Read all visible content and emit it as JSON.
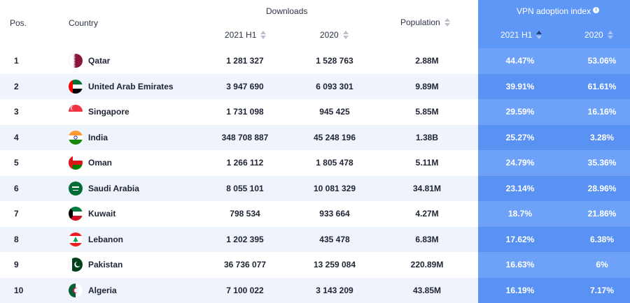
{
  "columns": {
    "pos": "Pos.",
    "country": "Country",
    "downloads_group": "Downloads",
    "downloads_2021h1": "2021 H1",
    "downloads_2020": "2020",
    "population": "Population",
    "vpn_group": "VPN adoption index",
    "vpn_2021h1": "2021 H1",
    "vpn_2020": "2020"
  },
  "colors": {
    "vpn_panel": "#5f97f7",
    "row_alt": "#eef3fc"
  },
  "rows": [
    {
      "pos": "1",
      "flag": "qatar-flag",
      "country": "Qatar",
      "dl_2021h1": "1 281 327",
      "dl_2020": "1 528 763",
      "population": "2.88M",
      "vpn_2021h1": "44.47%",
      "vpn_2020": "53.06%"
    },
    {
      "pos": "2",
      "flag": "uae-flag",
      "country": "United Arab Emirates",
      "dl_2021h1": "3 947 690",
      "dl_2020": "6 093 301",
      "population": "9.89M",
      "vpn_2021h1": "39.91%",
      "vpn_2020": "61.61%"
    },
    {
      "pos": "3",
      "flag": "singapore-flag",
      "country": "Singapore",
      "dl_2021h1": "1 731 098",
      "dl_2020": "945 425",
      "population": "5.85M",
      "vpn_2021h1": "29.59%",
      "vpn_2020": "16.16%"
    },
    {
      "pos": "4",
      "flag": "india-flag",
      "country": "India",
      "dl_2021h1": "348 708 887",
      "dl_2020": "45 248 196",
      "population": "1.38B",
      "vpn_2021h1": "25.27%",
      "vpn_2020": "3.28%"
    },
    {
      "pos": "5",
      "flag": "oman-flag",
      "country": "Oman",
      "dl_2021h1": "1 266 112",
      "dl_2020": "1 805 478",
      "population": "5.11M",
      "vpn_2021h1": "24.79%",
      "vpn_2020": "35.36%"
    },
    {
      "pos": "6",
      "flag": "saudi-arabia-flag",
      "country": "Saudi Arabia",
      "dl_2021h1": "8 055 101",
      "dl_2020": "10 081 329",
      "population": "34.81M",
      "vpn_2021h1": "23.14%",
      "vpn_2020": "28.96%"
    },
    {
      "pos": "7",
      "flag": "kuwait-flag",
      "country": "Kuwait",
      "dl_2021h1": "798 534",
      "dl_2020": "933 664",
      "population": "4.27M",
      "vpn_2021h1": "18.7%",
      "vpn_2020": "21.86%"
    },
    {
      "pos": "8",
      "flag": "lebanon-flag",
      "country": "Lebanon",
      "dl_2021h1": "1 202 395",
      "dl_2020": "435 478",
      "population": "6.83M",
      "vpn_2021h1": "17.62%",
      "vpn_2020": "6.38%"
    },
    {
      "pos": "9",
      "flag": "pakistan-flag",
      "country": "Pakistan",
      "dl_2021h1": "36 736 077",
      "dl_2020": "13 259 084",
      "population": "220.89M",
      "vpn_2021h1": "16.63%",
      "vpn_2020": "6%"
    },
    {
      "pos": "10",
      "flag": "algeria-flag",
      "country": "Algeria",
      "dl_2021h1": "7 100 022",
      "dl_2020": "3 143 209",
      "population": "43.85M",
      "vpn_2021h1": "16.19%",
      "vpn_2020": "7.17%"
    }
  ]
}
